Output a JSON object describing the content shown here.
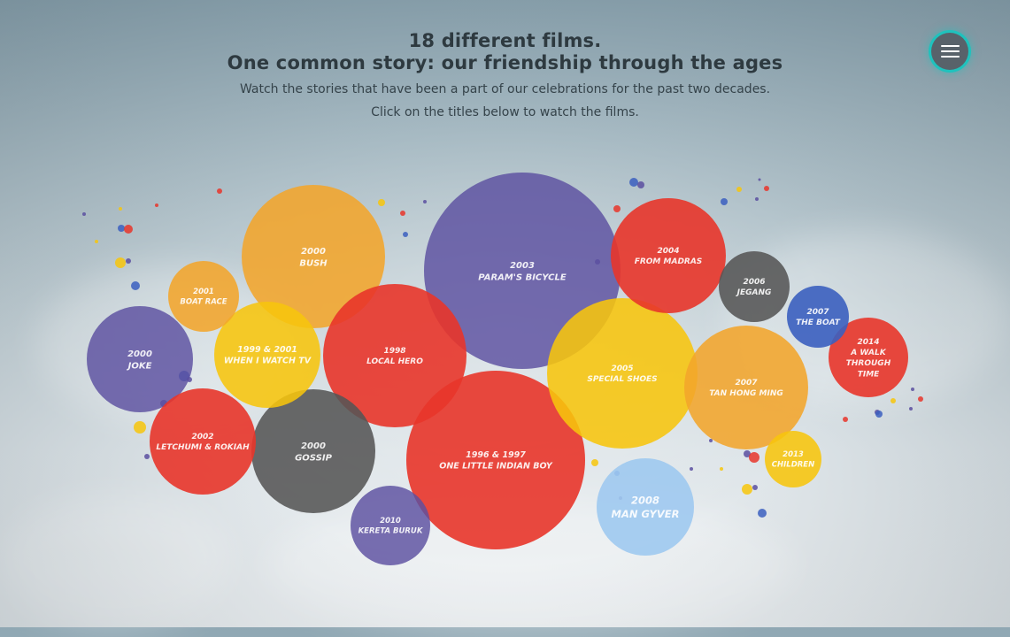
{
  "header": {
    "title_line1": "18 different films.",
    "title_line2": "One common story: our friendship through the ages",
    "subtitle_line1": "Watch the stories that have been a part of our celebrations for the past two decades.",
    "subtitle_line2": "Click on the titles below to watch the films."
  },
  "menu": {
    "icon": "hamburger-menu-icon"
  },
  "colors": {
    "purple": "#5b4fa0",
    "orange": "#f2a52b",
    "red": "#e8352a",
    "gray": "#555555",
    "yellow": "#f7c50c",
    "blue": "#3b5fbf",
    "lightblue": "#9ec9f0",
    "menu_ring": "#1fc2bd"
  },
  "films": [
    {
      "year": "2003",
      "title": "PARAM'S BICYCLE",
      "color": "purple"
    },
    {
      "year": "1996 & 1997",
      "title": "ONE LITTLE INDIAN BOY",
      "color": "red"
    },
    {
      "year": "2000",
      "title": "BUSH",
      "color": "orange"
    },
    {
      "year": "1998",
      "title": "LOCAL HERO",
      "color": "red"
    },
    {
      "year": "2005",
      "title": "SPECIAL SHOES",
      "color": "yellow"
    },
    {
      "year": "2004",
      "title": "FROM MADRAS",
      "color": "red"
    },
    {
      "year": "2007",
      "title": "TAN HONG MING",
      "color": "orange"
    },
    {
      "year": "2000",
      "title": "GOSSIP",
      "color": "gray"
    },
    {
      "year": "1999 & 2001",
      "title": "WHEN I WATCH TV",
      "color": "yellow"
    },
    {
      "year": "2000",
      "title": "JOKE",
      "color": "purple"
    },
    {
      "year": "2002",
      "title": "LETCHUMI & ROKIAH",
      "color": "red"
    },
    {
      "year": "2008",
      "title": "MAN GYVER",
      "color": "lightblue"
    },
    {
      "year": "2010",
      "title": "KERETA BURUK",
      "color": "purple"
    },
    {
      "year": "2006",
      "title": "JEGANG",
      "color": "gray"
    },
    {
      "year": "2014",
      "title": "A WALK THROUGH TIME",
      "color": "red"
    },
    {
      "year": "2001",
      "title": "BOAT RACE",
      "color": "orange"
    },
    {
      "year": "2007",
      "title": "THE BOAT",
      "color": "blue"
    },
    {
      "year": "2013",
      "title": "CHILDREN",
      "color": "yellow"
    }
  ]
}
